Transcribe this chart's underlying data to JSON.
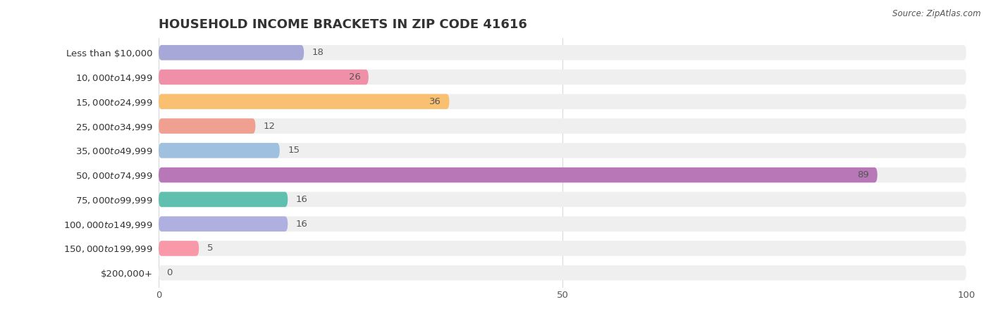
{
  "title": "HOUSEHOLD INCOME BRACKETS IN ZIP CODE 41616",
  "source": "Source: ZipAtlas.com",
  "categories": [
    "Less than $10,000",
    "$10,000 to $14,999",
    "$15,000 to $24,999",
    "$25,000 to $34,999",
    "$35,000 to $49,999",
    "$50,000 to $74,999",
    "$75,000 to $99,999",
    "$100,000 to $149,999",
    "$150,000 to $199,999",
    "$200,000+"
  ],
  "values": [
    18,
    26,
    36,
    12,
    15,
    89,
    16,
    16,
    5,
    0
  ],
  "bar_colors": [
    "#a8a8d8",
    "#f090a8",
    "#f8c070",
    "#f0a090",
    "#a0c0e0",
    "#b878b8",
    "#60c0b0",
    "#b0b0e0",
    "#f898a8",
    "#f8d0a0"
  ],
  "bar_bg_color": "#efefef",
  "xlim": [
    0,
    100
  ],
  "label_fontsize": 9.5,
  "title_fontsize": 13,
  "value_label_color_outside": "#555555",
  "value_label_color_inside": "#ffffff",
  "bg_color": "#ffffff",
  "grid_color": "#d8d8d8",
  "inside_threshold": 20
}
